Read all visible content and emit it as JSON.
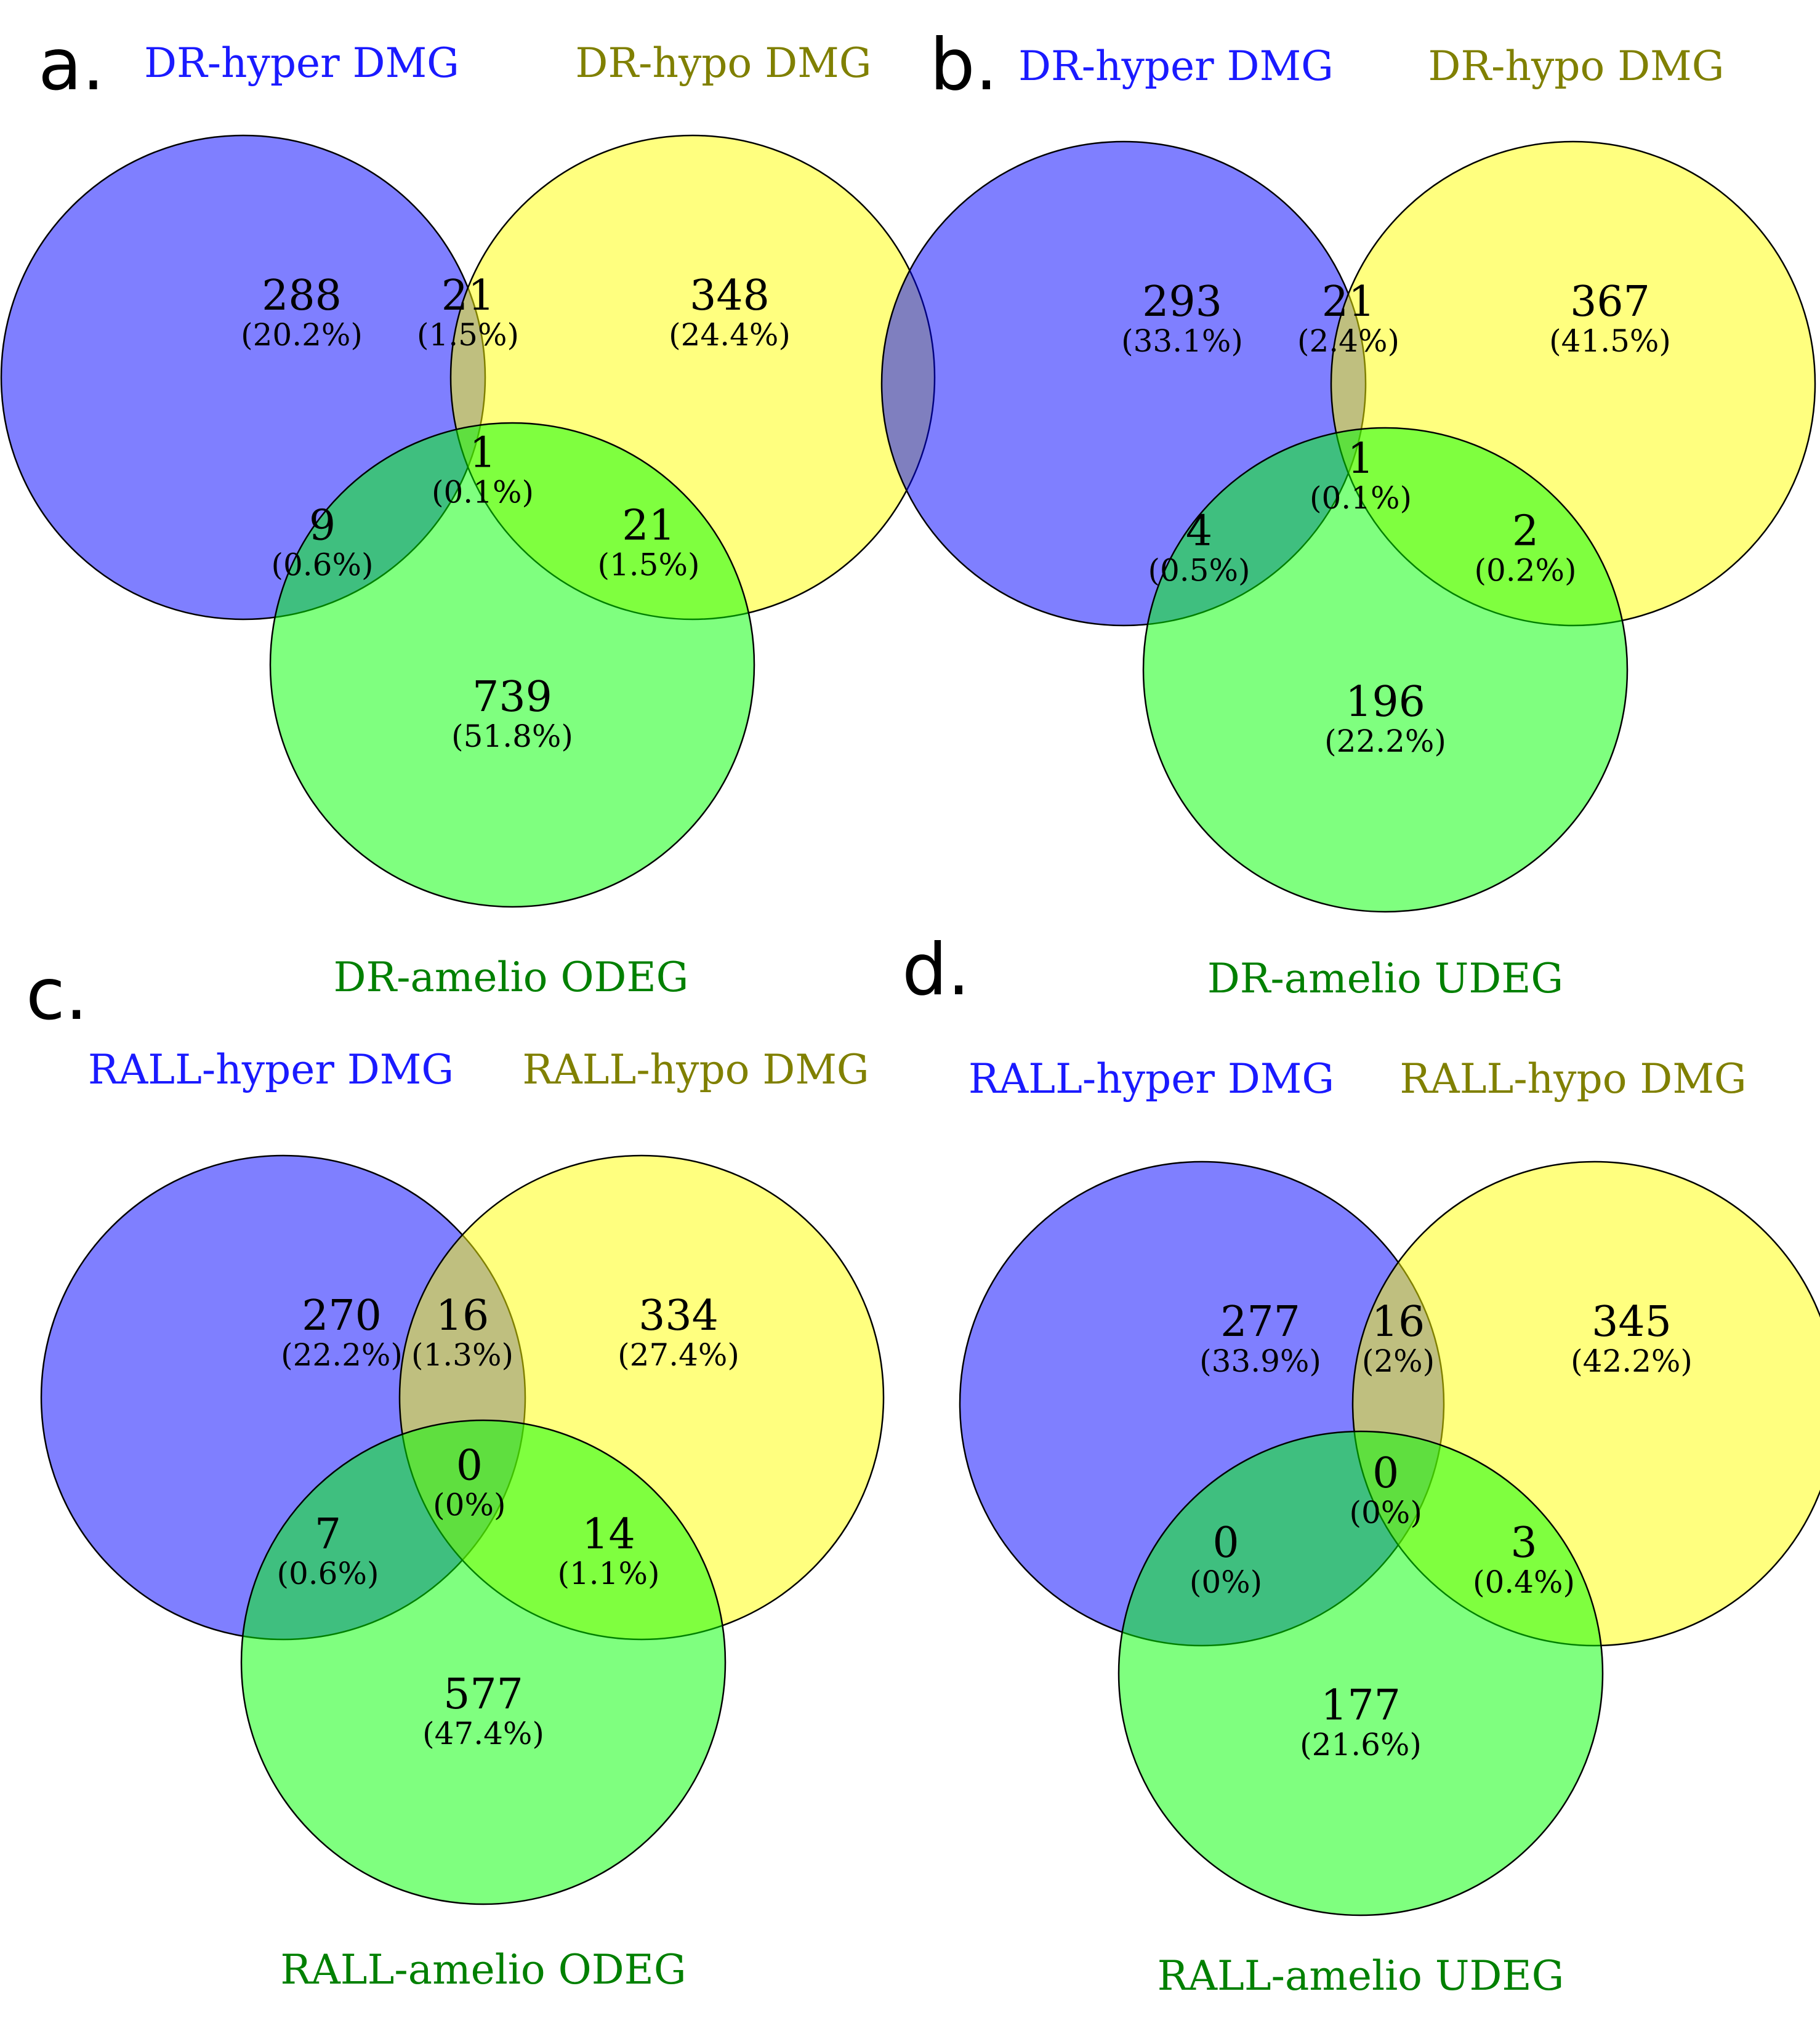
{
  "figure": {
    "colors": {
      "set_a_fill": "#0000ff",
      "set_b_fill": "#ffff00",
      "set_c_fill": "#00ff00",
      "set_a_label": "#1a1aff",
      "set_b_label": "#808000",
      "set_c_label": "#008000"
    }
  },
  "chart_data": [
    {
      "type": "venn",
      "panel": "a.",
      "sets": [
        "DR-hyper DMG",
        "DR-hypo DMG",
        "DR-amelio ODEG"
      ],
      "regions": {
        "a_only": {
          "count": "288",
          "pct": "(20.2%)"
        },
        "ab": {
          "count": "21",
          "pct": "(1.5%)"
        },
        "b_only": {
          "count": "348",
          "pct": "(24.4%)"
        },
        "abc": {
          "count": "1",
          "pct": "(0.1%)"
        },
        "ac": {
          "count": "9",
          "pct": "(0.6%)"
        },
        "bc": {
          "count": "21",
          "pct": "(1.5%)"
        },
        "c_only": {
          "count": "739",
          "pct": "(51.8%)"
        }
      }
    },
    {
      "type": "venn",
      "panel": "b.",
      "sets": [
        "DR-hyper DMG",
        "DR-hypo DMG",
        "DR-amelio UDEG"
      ],
      "regions": {
        "a_only": {
          "count": "293",
          "pct": "(33.1%)"
        },
        "ab": {
          "count": "21",
          "pct": "(2.4%)"
        },
        "b_only": {
          "count": "367",
          "pct": "(41.5%)"
        },
        "abc": {
          "count": "1",
          "pct": "(0.1%)"
        },
        "ac": {
          "count": "4",
          "pct": "(0.5%)"
        },
        "bc": {
          "count": "2",
          "pct": "(0.2%)"
        },
        "c_only": {
          "count": "196",
          "pct": "(22.2%)"
        }
      }
    },
    {
      "type": "venn",
      "panel": "c.",
      "sets": [
        "RALL-hyper DMG",
        "RALL-hypo DMG",
        "RALL-amelio ODEG"
      ],
      "regions": {
        "a_only": {
          "count": "270",
          "pct": "(22.2%)"
        },
        "ab": {
          "count": "16",
          "pct": "(1.3%)"
        },
        "b_only": {
          "count": "334",
          "pct": "(27.4%)"
        },
        "abc": {
          "count": "0",
          "pct": "(0%)"
        },
        "ac": {
          "count": "7",
          "pct": "(0.6%)"
        },
        "bc": {
          "count": "14",
          "pct": "(1.1%)"
        },
        "c_only": {
          "count": "577",
          "pct": "(47.4%)"
        }
      }
    },
    {
      "type": "venn",
      "panel": "d.",
      "sets": [
        "RALL-hyper DMG",
        "RALL-hypo DMG",
        "RALL-amelio UDEG"
      ],
      "regions": {
        "a_only": {
          "count": "277",
          "pct": "(33.9%)"
        },
        "ab": {
          "count": "16",
          "pct": "(2%)"
        },
        "b_only": {
          "count": "345",
          "pct": "(42.2%)"
        },
        "abc": {
          "count": "0",
          "pct": "(0%)"
        },
        "ac": {
          "count": "0",
          "pct": "(0%)"
        },
        "bc": {
          "count": "3",
          "pct": "(0.4%)"
        },
        "c_only": {
          "count": "177",
          "pct": "(21.6%)"
        }
      }
    }
  ]
}
